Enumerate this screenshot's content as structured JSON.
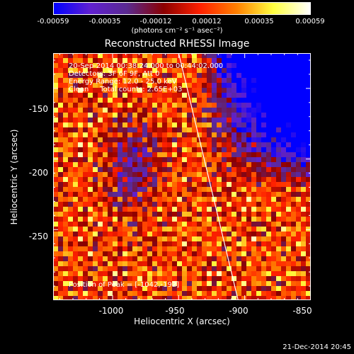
{
  "colorbar": {
    "ticks": [
      "-0.00059",
      "-0.00035",
      "-0.00012",
      "0.00012",
      "0.00035",
      "0.00059"
    ],
    "units": "(photons cm⁻² s⁻¹ asec⁻²)",
    "min": -0.00059,
    "max": 0.00059,
    "colors": [
      "#0000ff",
      "#6020d0",
      "#5a2a90",
      "#8b0000",
      "#ff2000",
      "#ff8000",
      "#ffff40",
      "#ffffff"
    ]
  },
  "chart_data": {
    "type": "heatmap",
    "title": "Reconstructed RHESSI Image",
    "xlabel": "Heliocentric X (arcsec)",
    "ylabel": "Heliocentric Y (arcsec)",
    "xlim": [
      -1045,
      -850
    ],
    "ylim": [
      -300,
      -125
    ],
    "xticks": [
      "-1000",
      "-950",
      "-900",
      "-850"
    ],
    "yticks": [
      "-150",
      "-200",
      "-250"
    ],
    "limb_line": {
      "x": [
        -950,
        -905
      ],
      "y": [
        -125,
        -300
      ]
    },
    "peak": {
      "x": -1042,
      "y": -192
    }
  },
  "annotations": {
    "time_range": "20-Sep-2014 00:38:24.000 to 00:44:02.000",
    "detectors": "Detectors: 3F 6F 9F, Att 0",
    "energy": "Energy Range: 12.0 - 25.0 keV",
    "clean": "Clean     Total counts: 2.65E+03",
    "peak_position": "Position of Peak = [-1042,-192]"
  },
  "timestamp": "21-Dec-2014 20:45"
}
